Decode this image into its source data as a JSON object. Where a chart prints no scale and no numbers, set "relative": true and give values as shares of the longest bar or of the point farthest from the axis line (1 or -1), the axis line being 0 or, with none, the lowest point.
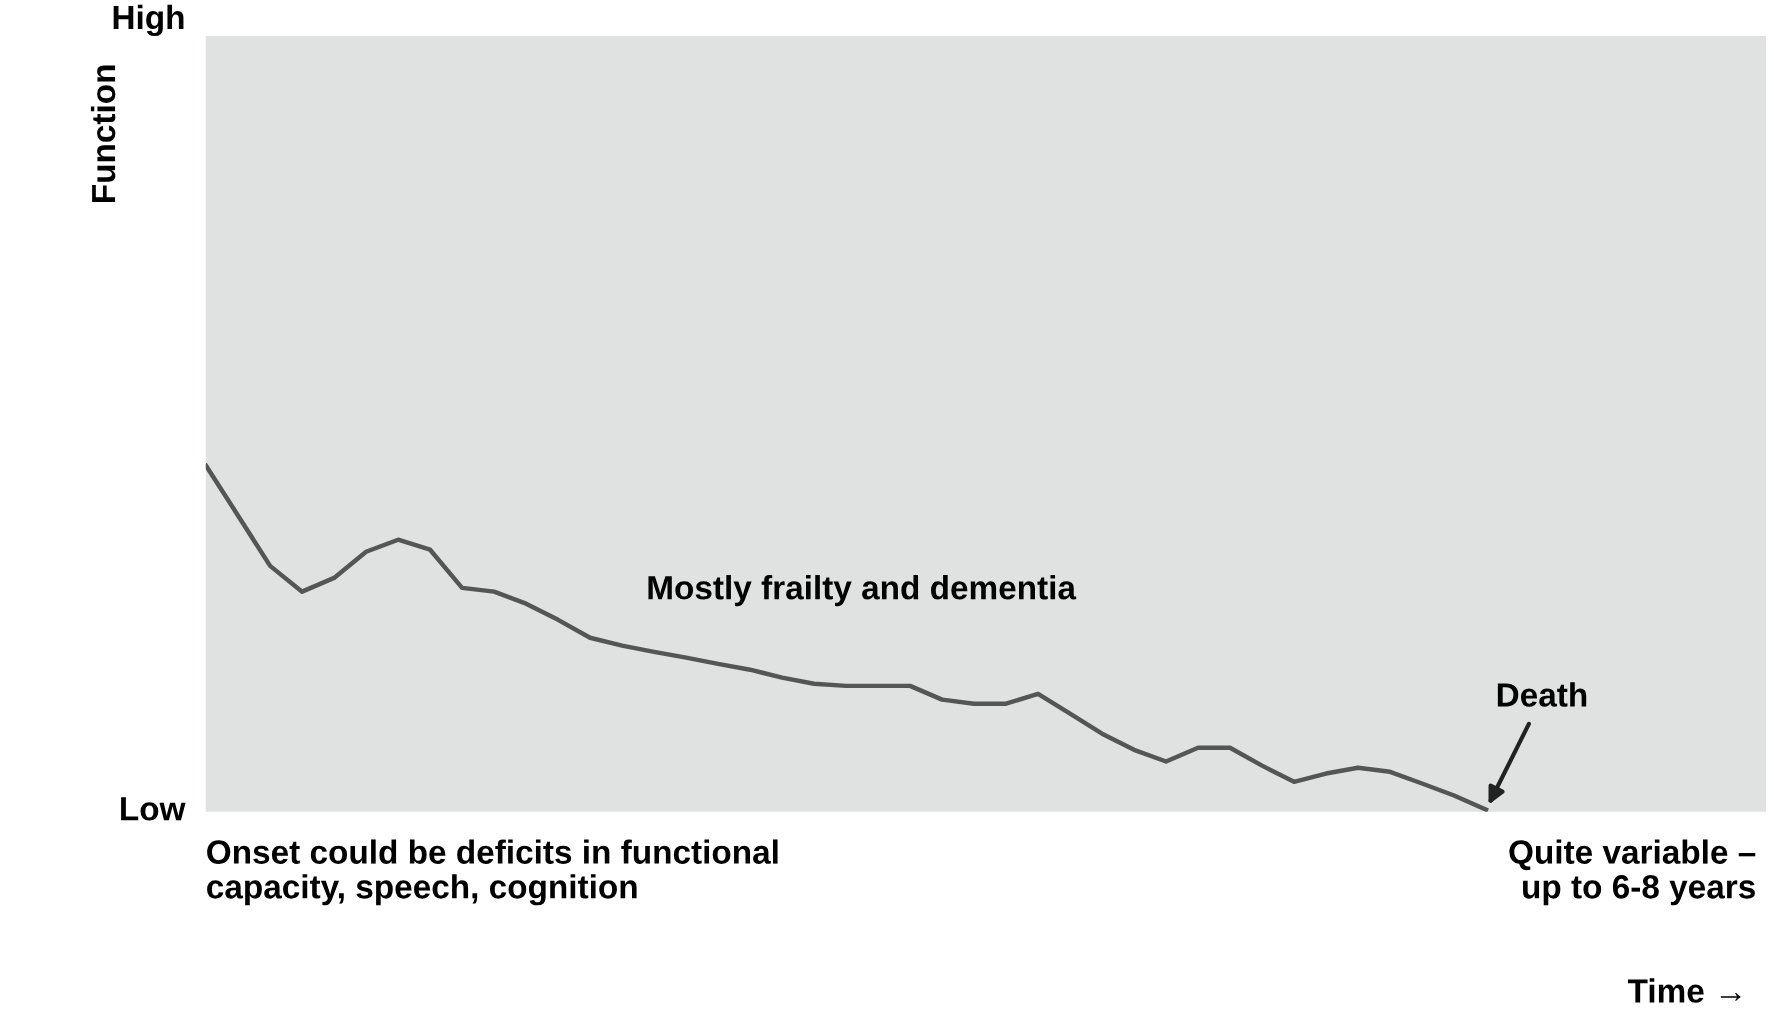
{
  "chart_data": {
    "type": "line",
    "relative": true,
    "categories": [
      null,
      null,
      null,
      null,
      null,
      null,
      null,
      null,
      null,
      null,
      null,
      null,
      null,
      null,
      null,
      null,
      null,
      null,
      null,
      null,
      null,
      null,
      null,
      null,
      null,
      null,
      null,
      null,
      null,
      null,
      null,
      null,
      null,
      null,
      null,
      null,
      null,
      null,
      null,
      null,
      null
    ],
    "series": [
      {
        "color": "#555555",
        "values": [
          1.0,
          0.855,
          0.709,
          0.634,
          0.674,
          0.75,
          0.785,
          0.756,
          0.645,
          0.634,
          0.599,
          0.552,
          0.5,
          0.477,
          0.459,
          0.442,
          0.424,
          0.407,
          0.384,
          0.366,
          0.36,
          0.36,
          0.36,
          0.32,
          0.308,
          0.308,
          0.337,
          0.279,
          0.221,
          0.174,
          0.14,
          0.18,
          0.18,
          0.128,
          0.081,
          0.105,
          0.122,
          0.11,
          0.076,
          0.041,
          0.0
        ]
      }
    ],
    "grid": false,
    "legend": false,
    "marker": "none",
    "line_style": "solid",
    "annotations": [
      "High",
      "Low",
      "Mostly frailty and dementia",
      "Death",
      "Onset could be deficits in functional\ncapacity, speech, cognition",
      "Quite variable –\nup to 6-8 years",
      "Function",
      "Time →"
    ]
  }
}
